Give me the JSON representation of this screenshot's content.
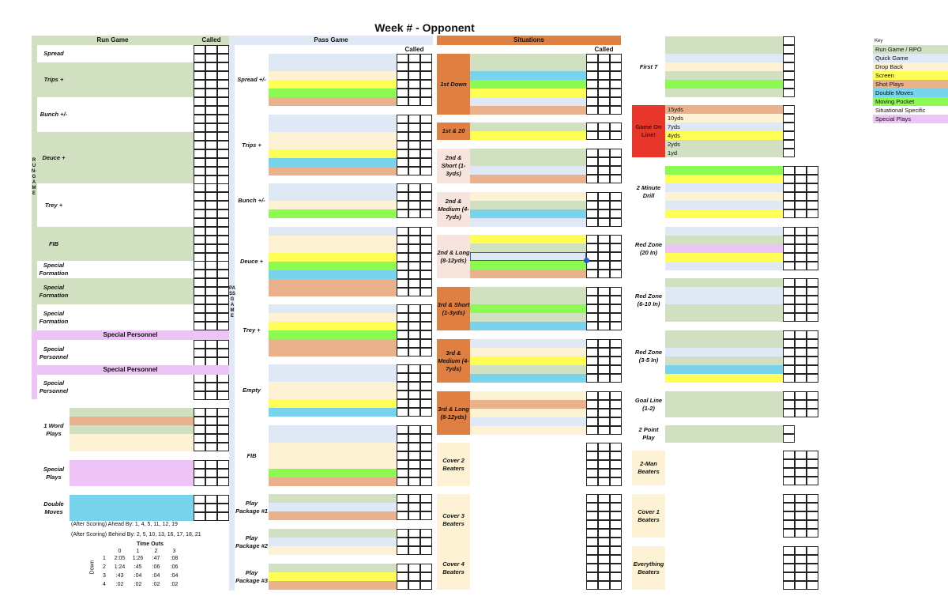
{
  "title": "Week # - Opponent",
  "colors": {
    "rb": "#d0e0c0",
    "qg": "#dfe8f5",
    "db": "#fdf2d4",
    "sc": "#fffe54",
    "sp": "#e9b18c",
    "dm": "#77d4ec",
    "mp": "#8cfa50",
    "ss": "#ffffff",
    "spl": "#eec3f5",
    "orange": "#df7f41",
    "peach": "#f7e4dc",
    "red": "#e8362a",
    "cream": "#fdf2d4",
    "passblue": "#dfe8f5"
  },
  "key": {
    "title": "Key",
    "items": [
      {
        "label": "Run Game / RPO",
        "color": "rb"
      },
      {
        "label": "Quick Game",
        "color": "qg"
      },
      {
        "label": "Drop Back",
        "color": "db"
      },
      {
        "label": "Screen",
        "color": "sc"
      },
      {
        "label": "Shot Plays",
        "color": "sp"
      },
      {
        "label": "Double Moves",
        "color": "dm"
      },
      {
        "label": "Moving Pocket",
        "color": "mp"
      },
      {
        "label": "Situational Specific",
        "color": "ss"
      },
      {
        "label": "Special Plays",
        "color": "spl"
      }
    ]
  },
  "called_label": "Called",
  "run_game": {
    "header": "Run Game",
    "side_label": "RUN-GAME",
    "sections": [
      {
        "label": "Spread"
      },
      {
        "label": "Trips +"
      },
      {
        "label": "Bunch +/-"
      },
      {
        "label": "Deuce +"
      },
      {
        "label": "Trey +"
      },
      {
        "label": "FIB"
      },
      {
        "label": "Special Formation"
      },
      {
        "label": "Special Formation"
      },
      {
        "label": "Special Formation"
      },
      {
        "label": "Special Personnel"
      },
      {
        "label": "Special Personnel"
      }
    ],
    "personnel_headers": [
      "Special Personnel",
      "Special Personnel"
    ]
  },
  "misc_plays": [
    {
      "label": "1 Word Plays",
      "stripes": [
        "rb",
        "sp",
        "rb",
        "db",
        "db"
      ]
    },
    {
      "label": "Special Plays",
      "stripes": [
        "spl",
        "spl",
        "spl"
      ]
    },
    {
      "label": "Double Moves",
      "stripes": [
        "dm",
        "dm",
        "dm"
      ]
    }
  ],
  "scoring_notes": [
    "(After Scoring) Ahead By: 1, 4, 5, 11, 12, 19",
    "(After Scoring) Behind By: 2, 5, 10, 13, 16, 17, 18, 21"
  ],
  "time_outs": {
    "title": "Time Outs",
    "row_axis": "Down",
    "columns": [
      "0",
      "1",
      "2",
      "3"
    ],
    "rows": [
      {
        "down": "1",
        "values": [
          "2:05",
          "1:26",
          ":47",
          ":08"
        ]
      },
      {
        "down": "2",
        "values": [
          "1:24",
          ":45",
          ":06",
          ":06"
        ]
      },
      {
        "down": "3",
        "values": [
          ":43",
          ":04",
          ":04",
          ":04"
        ]
      },
      {
        "down": "4",
        "values": [
          ":02",
          ":02",
          ":02",
          ":02"
        ]
      }
    ]
  },
  "pass_game": {
    "header": "Pass Game",
    "side_label": "PASSGAME",
    "sections": [
      {
        "label": "Spread +/-",
        "stripes": [
          "qg",
          "qg",
          "db",
          "sc",
          "mp",
          "sp"
        ]
      },
      {
        "label": "Trips +",
        "stripes": [
          "qg",
          "qg",
          "db",
          "db",
          "sc",
          "dm",
          "sp"
        ]
      },
      {
        "label": "Bunch +/-",
        "stripes": [
          "qg",
          "qg",
          "db",
          "mp"
        ]
      },
      {
        "label": "Deuce +",
        "stripes": [
          "qg",
          "db",
          "db",
          "sc",
          "mp",
          "dm",
          "sp",
          "sp"
        ]
      },
      {
        "label": "Trey +",
        "stripes": [
          "qg",
          "db",
          "sc",
          "mp",
          "sp",
          "sp"
        ]
      },
      {
        "label": "Empty",
        "stripes": [
          "qg",
          "qg",
          "db",
          "db",
          "sc",
          "dm"
        ]
      },
      {
        "label": "FIB",
        "stripes": [
          "qg",
          "qg",
          "db",
          "db",
          "db",
          "mp",
          "sp"
        ]
      },
      {
        "label": "Play Package #1",
        "stripes": [
          "rb",
          "qg",
          "sp"
        ]
      },
      {
        "label": "Play Package #2",
        "stripes": [
          "rb",
          "qg",
          "db"
        ]
      },
      {
        "label": "Play Package #3",
        "stripes": [
          "rb",
          "sc",
          "sp"
        ]
      }
    ]
  },
  "situations": {
    "header": "Situations",
    "sections": [
      {
        "label": "1st Down",
        "tone": "orange",
        "stripes": [
          "rb",
          "rb",
          "dm",
          "mp",
          "sc",
          "qg",
          "sp"
        ]
      },
      {
        "label": "1st & 20",
        "tone": "orange",
        "stripes": [
          "rb",
          "sc"
        ]
      },
      {
        "label": "2nd & Short (1-3yds)",
        "tone": "peach",
        "stripes": [
          "rb",
          "rb",
          "qg",
          "sp"
        ]
      },
      {
        "label": "2nd & Medium (4-7yds)",
        "tone": "peach",
        "stripes": [
          "db",
          "rb",
          "dm",
          "qg"
        ]
      },
      {
        "label": "2nd & Long (8-12yds)",
        "tone": "peach",
        "stripes": [
          "sc",
          "rb",
          "qg",
          "mp",
          "sp"
        ],
        "selected_row": 2
      },
      {
        "label": "3rd & Short (1-3yds)",
        "tone": "orange",
        "stripes": [
          "rb",
          "rb",
          "mp",
          "rb",
          "dm"
        ]
      },
      {
        "label": "3rd & Medium (4-7yds)",
        "tone": "orange",
        "stripes": [
          "qg",
          "db",
          "sc",
          "rb",
          "dm"
        ]
      },
      {
        "label": "3rd & Long (8-12yds)",
        "tone": "orange",
        "stripes": [
          "db",
          "sp",
          "db",
          "qg",
          "db"
        ]
      },
      {
        "label": "Cover 2 Beaters",
        "tone": "cream",
        "stripes": []
      },
      {
        "label": "Cover 3 Beaters",
        "tone": "cream",
        "stripes": []
      },
      {
        "label": "Cover 4 Beaters",
        "tone": "cream",
        "stripes": []
      }
    ]
  },
  "right": {
    "sections": [
      {
        "label": "First 7",
        "stripes": [
          "rb",
          "rb",
          "qg",
          "db",
          "rb",
          "mp",
          "rb"
        ]
      },
      {
        "label": "Game On Line!",
        "tone": "red",
        "stripes": [
          "sp",
          "db",
          "qg",
          "sc",
          "rb",
          "rb"
        ],
        "texts": [
          "15yds",
          "10yds",
          "7yds",
          "4yds",
          "2yds",
          "1yd"
        ]
      },
      {
        "label": "2 Minute Drill",
        "stripes": [
          "mp",
          "sc",
          "qg",
          "db",
          "qg",
          "sc"
        ]
      },
      {
        "label": "Red Zone (20 In)",
        "stripes": [
          "qg",
          "rb",
          "spl",
          "sc",
          "qg"
        ]
      },
      {
        "label": "Red Zone (6-10 In)",
        "stripes": [
          "rb",
          "qg",
          "qg",
          "rb",
          "rb"
        ]
      },
      {
        "label": "Red Zone (3-5 In)",
        "stripes": [
          "rb",
          "rb",
          "qg",
          "rb",
          "dm",
          "sc"
        ]
      },
      {
        "label": "Goal Line (1-2)",
        "stripes": [
          "rb",
          "rb",
          "rb"
        ]
      },
      {
        "label": "2 Point Play",
        "stripes": [
          "rb",
          "rb"
        ]
      },
      {
        "label": "2-Man Beaters",
        "tone": "cream",
        "stripes": []
      },
      {
        "label": "Cover 1 Beaters",
        "tone": "cream",
        "stripes": []
      },
      {
        "label": "Everything Beaters",
        "tone": "cream",
        "stripes": []
      }
    ]
  }
}
